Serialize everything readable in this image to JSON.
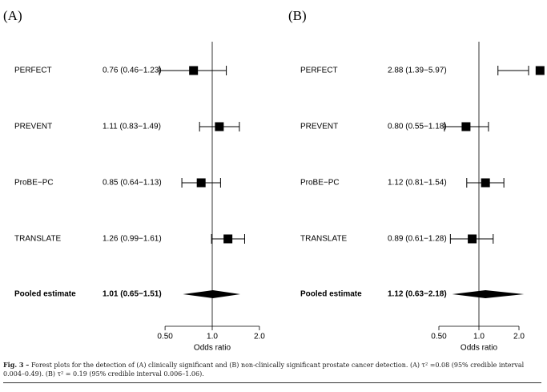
{
  "chart_data": [
    {
      "type": "forest",
      "panel_label": "(A)",
      "studies": [
        {
          "label": "PERFECT",
          "ci_text": "0.76 (0.46−1.23)",
          "or": 0.76,
          "lo": 0.46,
          "hi": 1.23
        },
        {
          "label": "PREVENT",
          "ci_text": "1.11 (0.83−1.49)",
          "or": 1.11,
          "lo": 0.83,
          "hi": 1.49
        },
        {
          "label": "ProBE−PC",
          "ci_text": "0.85 (0.64−1.13)",
          "or": 0.85,
          "lo": 0.64,
          "hi": 1.13
        },
        {
          "label": "TRANSLATE",
          "ci_text": "1.26 (0.99−1.61)",
          "or": 1.26,
          "lo": 0.99,
          "hi": 1.61
        }
      ],
      "pooled": {
        "label": "Pooled estimate",
        "ci_text": "1.01 (0.65−1.51)",
        "or": 1.01,
        "lo": 0.65,
        "hi": 1.51
      },
      "xlabel": "Odds ratio",
      "xscale": "log",
      "xticks": [
        0.5,
        1.0,
        2.0
      ],
      "xtick_labels": [
        "0.50",
        "1.0",
        "2.0"
      ],
      "xlim": [
        0.5,
        2.0
      ],
      "reference_line": 1.0
    },
    {
      "type": "forest",
      "panel_label": "(B)",
      "studies": [
        {
          "label": "PERFECT",
          "ci_text": "2.88 (1.39−5.97)",
          "or": 2.88,
          "lo": 1.39,
          "hi": 5.97
        },
        {
          "label": "PREVENT",
          "ci_text": "0.80 (0.55−1.18)",
          "or": 0.8,
          "lo": 0.55,
          "hi": 1.18
        },
        {
          "label": "ProBE−PC",
          "ci_text": "1.12 (0.81−1.54)",
          "or": 1.12,
          "lo": 0.81,
          "hi": 1.54
        },
        {
          "label": "TRANSLATE",
          "ci_text": "0.89 (0.61−1.28)",
          "or": 0.89,
          "lo": 0.61,
          "hi": 1.28
        }
      ],
      "pooled": {
        "label": "Pooled estimate",
        "ci_text": "1.12 (0.63−2.18)",
        "or": 1.12,
        "lo": 0.63,
        "hi": 2.18
      },
      "xlabel": "Odds ratio",
      "xscale": "log",
      "xticks": [
        0.5,
        1.0,
        2.0
      ],
      "xtick_labels": [
        "0.50",
        "1.0",
        "2.0"
      ],
      "xlim": [
        0.5,
        2.0
      ],
      "reference_line": 1.0
    }
  ],
  "caption": {
    "prefix": "Fig. 3 – ",
    "text": "Forest plots for the detection of (A) clinically significant and (B) non-clinically significant prostate cancer detection. (A) τ² =0.08 (95% credible interval 0.004–0.49). (B) τ² = 0.19 (95% credible interval 0.006–1.06)."
  }
}
